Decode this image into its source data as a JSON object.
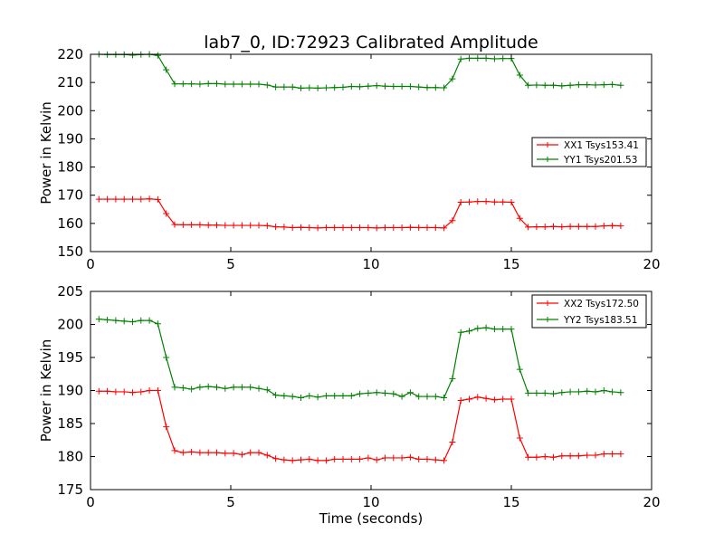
{
  "chart_data": [
    {
      "type": "line",
      "title": "lab7_0, ID:72923 Calibrated Amplitude",
      "xlabel": "",
      "ylabel": "Power in Kelvin",
      "xlim": [
        0,
        20
      ],
      "ylim": [
        150,
        220
      ],
      "xticks": [
        "0",
        "5",
        "10",
        "15",
        "20"
      ],
      "yticks": [
        "150",
        "160",
        "170",
        "180",
        "190",
        "200",
        "210",
        "220"
      ],
      "legend_position": "center-right",
      "x": [
        0.3,
        0.6,
        0.9,
        1.2,
        1.5,
        1.8,
        2.1,
        2.4,
        2.7,
        3.0,
        3.3,
        3.6,
        3.9,
        4.2,
        4.5,
        4.8,
        5.1,
        5.4,
        5.7,
        6.0,
        6.3,
        6.6,
        6.9,
        7.2,
        7.5,
        7.8,
        8.1,
        8.4,
        8.7,
        9.0,
        9.3,
        9.6,
        9.9,
        10.2,
        10.5,
        10.8,
        11.1,
        11.4,
        11.7,
        12.0,
        12.3,
        12.6,
        12.9,
        13.2,
        13.5,
        13.8,
        14.1,
        14.4,
        14.7,
        15.0,
        15.3,
        15.6,
        15.9,
        16.2,
        16.5,
        16.8,
        17.1,
        17.4,
        17.7,
        18.0,
        18.3,
        18.6,
        18.9
      ],
      "series": [
        {
          "name": "XX1 Tsys153.41",
          "color": "#ff0000",
          "values": [
            168.6,
            168.6,
            168.6,
            168.6,
            168.6,
            168.6,
            168.7,
            168.5,
            163.5,
            159.6,
            159.5,
            159.5,
            159.5,
            159.4,
            159.4,
            159.3,
            159.3,
            159.3,
            159.3,
            159.3,
            159.2,
            158.8,
            158.7,
            158.5,
            158.6,
            158.5,
            158.4,
            158.5,
            158.5,
            158.5,
            158.5,
            158.5,
            158.5,
            158.4,
            158.5,
            158.5,
            158.5,
            158.6,
            158.5,
            158.5,
            158.5,
            158.4,
            161.0,
            167.5,
            167.6,
            167.8,
            167.8,
            167.6,
            167.6,
            167.5,
            161.8,
            158.7,
            158.8,
            158.8,
            158.9,
            158.8,
            158.9,
            158.9,
            158.9,
            158.9,
            159.1,
            159.2,
            159.1
          ]
        },
        {
          "name": "YY1 Tsys201.53",
          "color": "#008000",
          "values": [
            220.0,
            219.9,
            219.9,
            219.9,
            219.7,
            219.9,
            220.0,
            219.6,
            214.5,
            209.5,
            209.5,
            209.5,
            209.4,
            209.6,
            209.6,
            209.4,
            209.4,
            209.4,
            209.4,
            209.4,
            209.1,
            208.4,
            208.4,
            208.4,
            208.0,
            208.1,
            208.0,
            208.1,
            208.2,
            208.3,
            208.6,
            208.5,
            208.7,
            208.9,
            208.7,
            208.6,
            208.6,
            208.6,
            208.4,
            208.2,
            208.2,
            208.1,
            211.3,
            218.3,
            218.6,
            218.6,
            218.6,
            218.4,
            218.5,
            218.5,
            212.6,
            209.0,
            209.1,
            209.0,
            209.0,
            208.8,
            209.0,
            209.2,
            209.2,
            209.1,
            209.2,
            209.3,
            209.0
          ]
        }
      ]
    },
    {
      "type": "line",
      "title": "",
      "xlabel": "Time (seconds)",
      "ylabel": "Power in Kelvin",
      "xlim": [
        0,
        20
      ],
      "ylim": [
        175,
        205
      ],
      "xticks": [
        "0",
        "5",
        "10",
        "15",
        "20"
      ],
      "yticks": [
        "175",
        "180",
        "185",
        "190",
        "195",
        "200",
        "205"
      ],
      "legend_position": "top-right",
      "x": [
        0.3,
        0.6,
        0.9,
        1.2,
        1.5,
        1.8,
        2.1,
        2.4,
        2.7,
        3.0,
        3.3,
        3.6,
        3.9,
        4.2,
        4.5,
        4.8,
        5.1,
        5.4,
        5.7,
        6.0,
        6.3,
        6.6,
        6.9,
        7.2,
        7.5,
        7.8,
        8.1,
        8.4,
        8.7,
        9.0,
        9.3,
        9.6,
        9.9,
        10.2,
        10.5,
        10.8,
        11.1,
        11.4,
        11.7,
        12.0,
        12.3,
        12.6,
        12.9,
        13.2,
        13.5,
        13.8,
        14.1,
        14.4,
        14.7,
        15.0,
        15.3,
        15.6,
        15.9,
        16.2,
        16.5,
        16.8,
        17.1,
        17.4,
        17.7,
        18.0,
        18.3,
        18.6,
        18.9
      ],
      "series": [
        {
          "name": "XX2 Tsys172.50",
          "color": "#ff0000",
          "values": [
            189.9,
            189.9,
            189.8,
            189.8,
            189.7,
            189.8,
            190.0,
            190.0,
            184.5,
            180.9,
            180.6,
            180.7,
            180.6,
            180.6,
            180.6,
            180.5,
            180.5,
            180.3,
            180.6,
            180.6,
            180.2,
            179.7,
            179.5,
            179.4,
            179.5,
            179.6,
            179.4,
            179.4,
            179.6,
            179.6,
            179.6,
            179.6,
            179.8,
            179.5,
            179.8,
            179.8,
            179.8,
            179.9,
            179.6,
            179.6,
            179.5,
            179.4,
            182.2,
            188.5,
            188.7,
            189.0,
            188.8,
            188.6,
            188.7,
            188.7,
            182.8,
            179.9,
            179.9,
            180.0,
            179.9,
            180.1,
            180.1,
            180.1,
            180.2,
            180.2,
            180.4,
            180.4,
            180.4
          ]
        },
        {
          "name": "YY2 Tsys183.51",
          "color": "#008000",
          "values": [
            200.8,
            200.7,
            200.6,
            200.5,
            200.4,
            200.6,
            200.6,
            200.1,
            195.0,
            190.5,
            190.4,
            190.2,
            190.5,
            190.6,
            190.5,
            190.3,
            190.5,
            190.5,
            190.5,
            190.3,
            190.1,
            189.3,
            189.2,
            189.1,
            188.9,
            189.2,
            189.0,
            189.2,
            189.2,
            189.2,
            189.2,
            189.5,
            189.6,
            189.7,
            189.6,
            189.5,
            189.1,
            189.7,
            189.1,
            189.1,
            189.1,
            188.9,
            191.8,
            198.8,
            199.0,
            199.4,
            199.5,
            199.3,
            199.3,
            199.3,
            193.2,
            189.6,
            189.6,
            189.6,
            189.5,
            189.7,
            189.8,
            189.8,
            189.9,
            189.8,
            190.0,
            189.8,
            189.7
          ]
        }
      ]
    }
  ]
}
